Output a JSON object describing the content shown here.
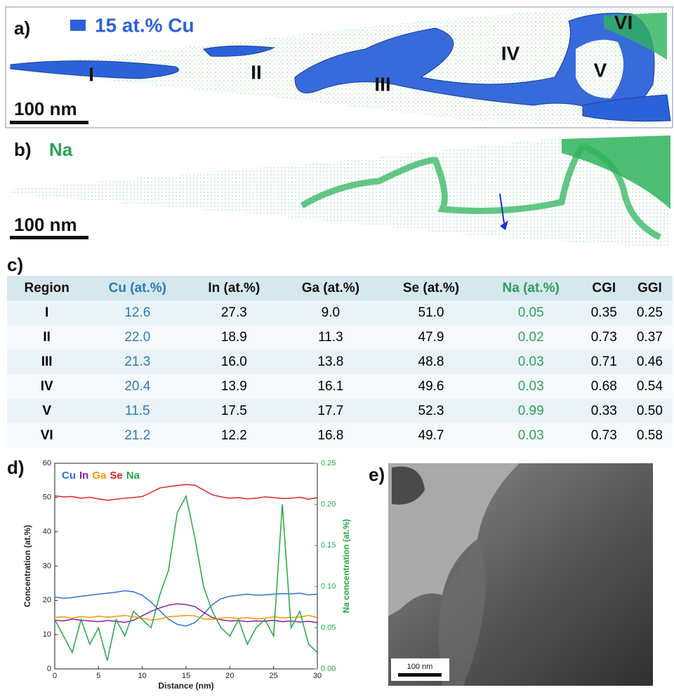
{
  "panels": {
    "a": {
      "label": "a)",
      "legend": "15 at.% Cu",
      "regions": [
        "I",
        "II",
        "III",
        "IV",
        "V",
        "VI"
      ],
      "scale_bar": "100 nm"
    },
    "b": {
      "label": "b)",
      "element": "Na",
      "scale_bar": "100 nm"
    },
    "c": {
      "label": "c)"
    },
    "d": {
      "label": "d)"
    },
    "e": {
      "label": "e)",
      "scale_bar": "100 nm"
    }
  },
  "table": {
    "header": [
      "Region",
      "Cu (at.%)",
      "In (at.%)",
      "Ga (at.%)",
      "Se (at.%)",
      "Na (at.%)",
      "CGI",
      "GGI"
    ],
    "rows": [
      [
        "I",
        "12.6",
        "27.3",
        "9.0",
        "51.0",
        "0.05",
        "0.35",
        "0.25"
      ],
      [
        "II",
        "22.0",
        "18.9",
        "11.3",
        "47.9",
        "0.02",
        "0.73",
        "0.37"
      ],
      [
        "III",
        "21.3",
        "16.0",
        "13.8",
        "48.8",
        "0.03",
        "0.71",
        "0.46"
      ],
      [
        "IV",
        "20.4",
        "13.9",
        "16.1",
        "49.6",
        "0.03",
        "0.68",
        "0.54"
      ],
      [
        "V",
        "11.5",
        "17.5",
        "17.7",
        "52.3",
        "0.99",
        "0.33",
        "0.50"
      ],
      [
        "VI",
        "21.2",
        "12.2",
        "16.8",
        "49.7",
        "0.03",
        "0.73",
        "0.58"
      ]
    ]
  },
  "chart_data": {
    "type": "line",
    "x_label": "Distance (nm)",
    "y_label": "Concentration (at.%)",
    "y2_label": "Na concentration (at.%)",
    "x": [
      0,
      1,
      2,
      3,
      4,
      5,
      6,
      7,
      8,
      9,
      10,
      11,
      12,
      13,
      14,
      15,
      16,
      17,
      18,
      19,
      20,
      21,
      22,
      23,
      24,
      25,
      26,
      27,
      28,
      29,
      30
    ],
    "xlim": [
      0,
      30
    ],
    "xticks": [
      0,
      5,
      10,
      15,
      20,
      25,
      30
    ],
    "ylim": [
      0,
      60
    ],
    "yticks": [
      0,
      10,
      20,
      30,
      40,
      50,
      60
    ],
    "y2lim": [
      0,
      0.25
    ],
    "y2ticks": [
      {
        "value": 0,
        "label": "0.00"
      },
      0.05,
      {
        "value": 0.1,
        "label": "0.10"
      },
      0.15,
      {
        "value": 0.2,
        "label": "0.20"
      },
      0.25
    ],
    "series": [
      {
        "name": "Cu",
        "color": "#2f73d6",
        "values": [
          21,
          20.6,
          20.8,
          21.2,
          21.5,
          21.8,
          22.1,
          22.4,
          22.8,
          22.5,
          21.5,
          19.5,
          17.0,
          14.5,
          13.0,
          12.5,
          13.5,
          16.0,
          18.8,
          20.5,
          21.2,
          21.5,
          21.8,
          21.5,
          21.6,
          21.8,
          22.0,
          21.9,
          22.1,
          21.6,
          21.8
        ]
      },
      {
        "name": "In",
        "color": "#8e1f9c",
        "values": [
          14.2,
          14.0,
          14.5,
          14.2,
          14.0,
          13.8,
          14.1,
          13.9,
          13.6,
          14.2,
          15.5,
          16.8,
          17.8,
          18.6,
          19.0,
          18.8,
          18.2,
          16.5,
          15.0,
          14.3,
          14.0,
          14.1,
          13.8,
          14.0,
          13.9,
          14.2,
          13.8,
          14.0,
          13.7,
          13.9,
          13.5
        ]
      },
      {
        "name": "Ga",
        "color": "#f09a00",
        "values": [
          15.0,
          15.2,
          14.8,
          15.3,
          15.0,
          15.4,
          15.1,
          15.3,
          15.6,
          15.2,
          14.8,
          14.2,
          14.6,
          15.2,
          15.4,
          15.6,
          15.5,
          14.6,
          14.5,
          14.8,
          15.0,
          14.7,
          15.0,
          14.6,
          14.8,
          15.2,
          14.9,
          15.0,
          15.1,
          15.6,
          15.0
        ]
      },
      {
        "name": "Se",
        "color": "#e02424",
        "values": [
          50.5,
          50.2,
          50.3,
          49.8,
          50.1,
          49.6,
          49.2,
          49.5,
          49.8,
          50.0,
          50.3,
          51.5,
          52.8,
          53.2,
          53.5,
          53.8,
          53.6,
          52.2,
          50.8,
          50.2,
          49.8,
          50.0,
          49.6,
          49.8,
          50.2,
          50.0,
          49.7,
          49.8,
          50.1,
          49.5,
          50.0
        ]
      },
      {
        "name": "Na",
        "color": "#22a64a",
        "axis": "y2",
        "values": [
          0.06,
          0.04,
          0.02,
          0.06,
          0.03,
          0.05,
          0.01,
          0.06,
          0.04,
          0.07,
          0.06,
          0.05,
          0.09,
          0.12,
          0.19,
          0.21,
          0.16,
          0.1,
          0.07,
          0.05,
          0.04,
          0.06,
          0.03,
          0.05,
          0.06,
          0.04,
          0.2,
          0.05,
          0.07,
          0.03,
          0.02
        ]
      }
    ]
  }
}
